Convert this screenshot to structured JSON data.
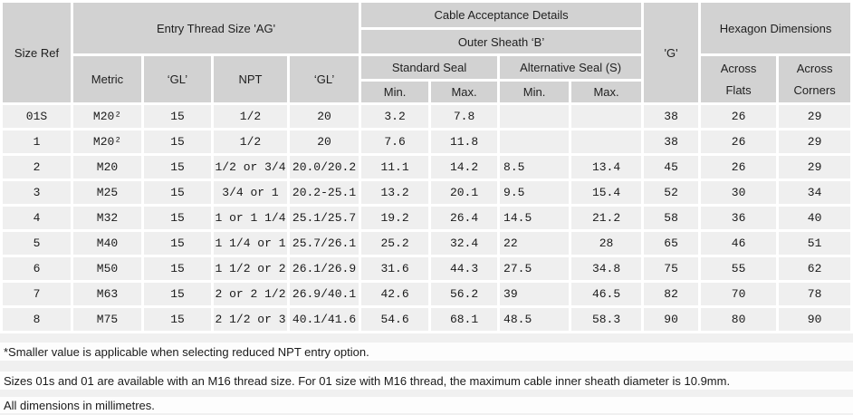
{
  "table": {
    "header": {
      "size_ref": "Size Ref",
      "entry_thread": "Entry Thread Size 'AG'",
      "metric": "Metric",
      "gl1": "‘GL’",
      "npt": "NPT",
      "gl2": "‘GL’",
      "cable_acceptance": "Cable Acceptance Details",
      "outer_sheath": "Outer Sheath ‘B’",
      "standard_seal": "Standard Seal",
      "alternative_seal": "Alternative Seal (S)",
      "std_min": "Min.",
      "std_max": "Max.",
      "alt_min": "Min.",
      "alt_max": "Max.",
      "g": "'G'",
      "hexagon": "Hexagon Dimensions",
      "across_flats": "Across\nFlats",
      "across_corners": "Across\nCorners"
    },
    "rows": [
      [
        "01S",
        "M20²",
        "15",
        "1/2",
        "20",
        "3.2",
        "7.8",
        "",
        "",
        "38",
        "26",
        "29"
      ],
      [
        "1",
        "M20²",
        "15",
        "1/2",
        "20",
        "7.6",
        "11.8",
        "",
        "",
        "38",
        "26",
        "29"
      ],
      [
        "2",
        "M20",
        "15",
        "1/2 or 3/4",
        "20.0/20.2",
        "11.1",
        "14.2",
        "8.5",
        "13.4",
        "45",
        "26",
        "29"
      ],
      [
        "3",
        "M25",
        "15",
        "3/4 or 1",
        "20.2-25.1",
        "13.2",
        "20.1",
        "9.5",
        "15.4",
        "52",
        "30",
        "34"
      ],
      [
        "4",
        "M32",
        "15",
        "1 or 1 1/4",
        "25.1/25.7",
        "19.2",
        "26.4",
        "14.5",
        "21.2",
        "58",
        "36",
        "40"
      ],
      [
        "5",
        "M40",
        "15",
        "1 1/4 or 1",
        "25.7/26.1",
        "25.2",
        "32.4",
        "22",
        "28",
        "65",
        "46",
        "51"
      ],
      [
        "6",
        "M50",
        "15",
        "1 1/2 or 2",
        "26.1/26.9",
        "31.6",
        "44.3",
        "27.5",
        "34.8",
        "75",
        "55",
        "62"
      ],
      [
        "7",
        "M63",
        "15",
        "2 or 2 1/2",
        "26.9/40.1",
        "42.6",
        "56.2",
        "39",
        "46.5",
        "82",
        "70",
        "78"
      ],
      [
        "8",
        "M75",
        "15",
        "2 1/2 or 3",
        "40.1/41.6",
        "54.6",
        "68.1",
        "48.5",
        "58.3",
        "90",
        "80",
        "90"
      ]
    ]
  },
  "footnotes": [
    "*Smaller value is applicable when selecting reduced NPT entry option.",
    "Sizes 01s and 01 are available with an M16 thread size. For 01 size with M16 thread, the maximum cable inner sheath diameter is 10.9mm.",
    "All dimensions in millimetres."
  ],
  "colors": {
    "header_cell": "#d2d2d2",
    "data_cell": "#efefef",
    "gridline": "#ffffff",
    "page_background": "#f0f0f0",
    "text": "#1a1a1a"
  }
}
